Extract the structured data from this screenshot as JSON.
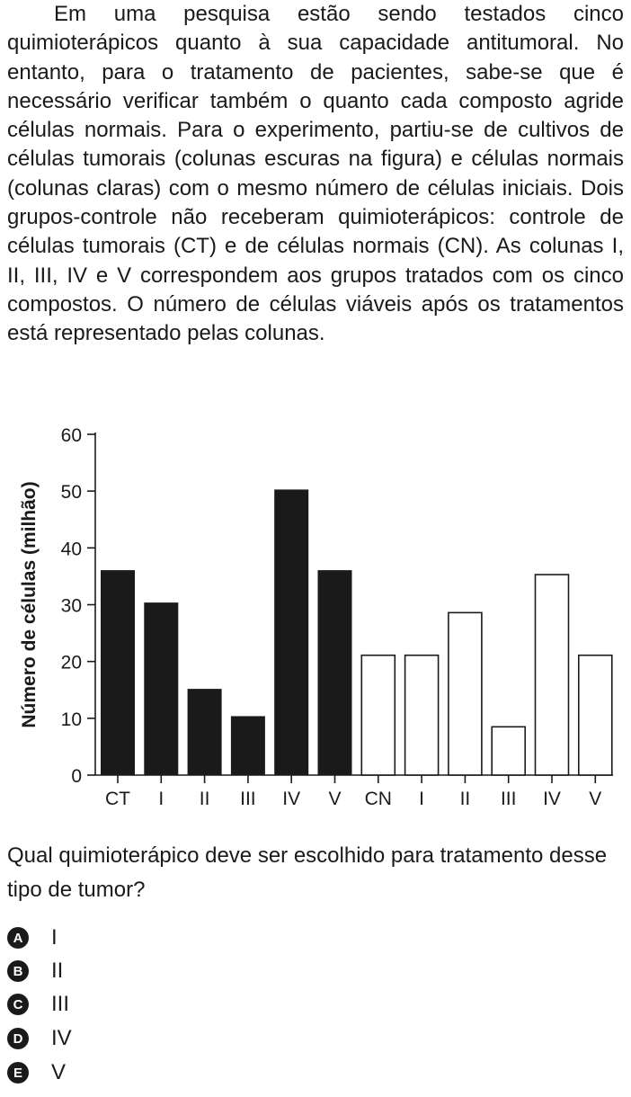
{
  "stem": "Em uma pesquisa estão sendo testados cinco quimioterápicos quanto à sua capacidade antitumoral. No entanto, para o tratamento de pacientes, sabe-se que é necessário verificar também o quanto cada composto agride células normais. Para o experimento, partiu-se de cultivos de células tumorais (colunas escuras na figura) e células normais (colunas claras) com o mesmo número de células iniciais. Dois grupos-controle não receberam quimioterápicos: controle de células tumorais (CT) e de células normais (CN). As colunas I, II, III, IV e V correspondem aos grupos tratados com os cinco compostos. O número de células viáveis após os tratamentos está representado pelas colunas.",
  "chart_data": {
    "type": "bar",
    "ylabel": "Número de células (milhão)",
    "ylim": [
      0,
      60
    ],
    "yticks": [
      0,
      10,
      20,
      30,
      40,
      50,
      60
    ],
    "grid": false,
    "categories": [
      "CT",
      "I",
      "II",
      "III",
      "IV",
      "V",
      "CN",
      "I",
      "II",
      "III",
      "IV",
      "V"
    ],
    "values": [
      36,
      30.3,
      15.1,
      10.3,
      50.2,
      36,
      21.1,
      21.1,
      28.6,
      8.5,
      35.3,
      21.1
    ],
    "groups": [
      "tumoral",
      "tumoral",
      "tumoral",
      "tumoral",
      "tumoral",
      "tumoral",
      "normal",
      "normal",
      "normal",
      "normal",
      "normal",
      "normal"
    ],
    "colors": {
      "tumoral": "#1a1a1a",
      "normal": "#ffffff"
    }
  },
  "question": "Qual quimioterápico deve ser escolhido para tratamento desse tipo de tumor?",
  "options": [
    {
      "letter": "A",
      "text": "I"
    },
    {
      "letter": "B",
      "text": "II"
    },
    {
      "letter": "C",
      "text": "III"
    },
    {
      "letter": "D",
      "text": "IV"
    },
    {
      "letter": "E",
      "text": "V"
    }
  ]
}
